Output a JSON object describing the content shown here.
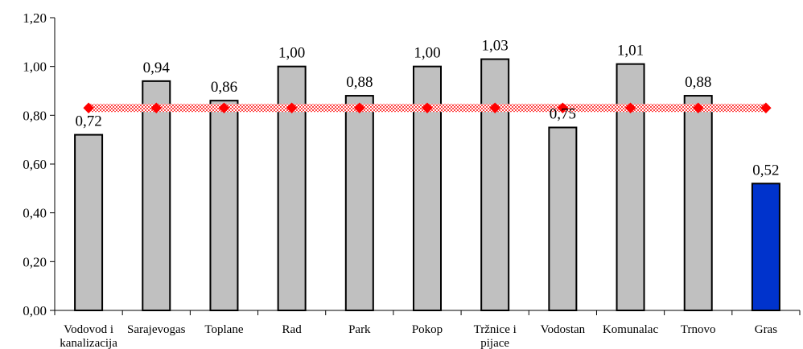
{
  "chart_data": {
    "type": "bar",
    "categories": [
      [
        "Vodovod i",
        "kanalizacija"
      ],
      [
        "Sarajevogas"
      ],
      [
        "Toplane"
      ],
      [
        "Rad"
      ],
      [
        "Park"
      ],
      [
        "Pokop"
      ],
      [
        "Tržnice i",
        "pijace"
      ],
      [
        "Vodostan"
      ],
      [
        "Komunalac"
      ],
      [
        "Trnovo"
      ],
      [
        "Gras"
      ]
    ],
    "series": [
      {
        "type": "bar",
        "values": [
          0.72,
          0.94,
          0.86,
          1.0,
          0.88,
          1.0,
          1.03,
          0.75,
          1.01,
          0.88,
          0.52
        ],
        "value_labels": [
          "0,72",
          "0,94",
          "0,86",
          "1,00",
          "0,88",
          "1,00",
          "1,03",
          "0,75",
          "1,01",
          "0,88",
          "0,52"
        ],
        "colors": [
          "#c0c0c0",
          "#c0c0c0",
          "#c0c0c0",
          "#c0c0c0",
          "#c0c0c0",
          "#c0c0c0",
          "#c0c0c0",
          "#c0c0c0",
          "#c0c0c0",
          "#c0c0c0",
          "#0033cc"
        ]
      },
      {
        "type": "line",
        "values": [
          0.83,
          0.83,
          0.83,
          0.83,
          0.83,
          0.83,
          0.83,
          0.83,
          0.83,
          0.83,
          0.83
        ],
        "color": "#ff0000",
        "marker": "diamond"
      }
    ],
    "title": "",
    "xlabel": "",
    "ylabel": "",
    "ylim": [
      0,
      1.2
    ],
    "yticks": [
      "0,00",
      "0,20",
      "0,40",
      "0,60",
      "0,80",
      "1,00",
      "1,20"
    ],
    "grid": false,
    "legend": "none"
  }
}
